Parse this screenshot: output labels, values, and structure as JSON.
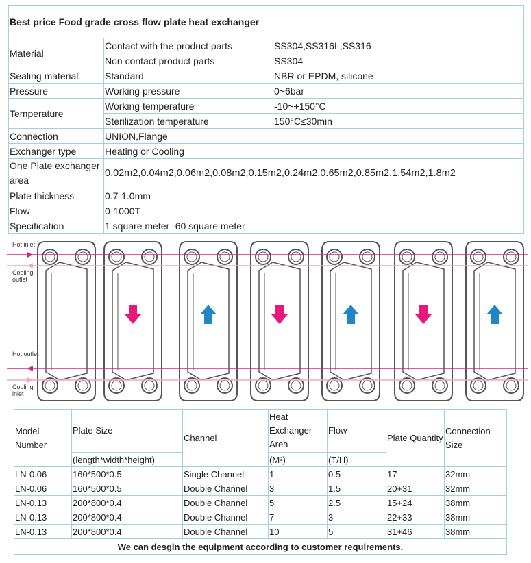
{
  "spec_table": {
    "title": "Best price Food grade cross flow plate heat exchanger",
    "rows": [
      {
        "label": "Material",
        "items": [
          [
            "Contact with the product parts",
            "SS304,SS316L,SS316"
          ],
          [
            "Non contact product parts",
            "SS304"
          ]
        ]
      },
      {
        "label": "Sealing material",
        "items": [
          [
            "Standard",
            "NBR or EPDM, silicone"
          ]
        ]
      },
      {
        "label": "Pressure",
        "items": [
          [
            "Working pressure",
            "0~6bar"
          ]
        ]
      },
      {
        "label": "Temperature",
        "items": [
          [
            "Working temperature",
            "-10~+150°C"
          ],
          [
            "Sterilization temperature",
            "150°C≤30min"
          ]
        ]
      },
      {
        "label": "Connection",
        "value": "UNION,Flange"
      },
      {
        "label": "Exchanger type",
        "value": "Heating or Cooling"
      },
      {
        "label": "One Plate exchanger area",
        "value": "0.02m2,0.04m2,0.06m2,0.08m2,0.15m2,0.24m2,0.65m2,0.85m2,1.54m2,1.8m2"
      },
      {
        "label": "Plate thickness",
        "value": "0.7-1.0mm"
      },
      {
        "label": "Flow",
        "value": "0-1000T"
      },
      {
        "label": "Specification",
        "value": "1 square meter -60 square meter"
      }
    ]
  },
  "diagram": {
    "hot_inlet": "Hot inlet",
    "cooling_outlet": "Cooling outlet",
    "hot_outlet": "Hot outlet",
    "cooling_inlet": "Cooling inlet"
  },
  "model_table": {
    "headers": [
      "Model Number",
      "Plate Size",
      "Channel",
      "Heat Exchanger Area",
      "Flow",
      "Plate Quantity",
      "Connection Size"
    ],
    "units": {
      "1": "(length*width*height)",
      "3": "(M²)",
      "4": "(T/H)"
    },
    "rows": [
      [
        "LN-0.06",
        "160*500*0.5",
        "Single Channel",
        "1",
        "0.5",
        "17",
        "32mm"
      ],
      [
        "LN-0.06",
        "160*500*0.5",
        "Double Channel",
        "3",
        "1.5",
        "20+31",
        "32mm"
      ],
      [
        "LN-0.13",
        "200*800*0.4",
        "Double Channel",
        "5",
        "2.5",
        "15+24",
        "38mm"
      ],
      [
        "LN-0.13",
        "200*800*0.4",
        "Double Channel",
        "7",
        "3",
        "22+33",
        "38mm"
      ],
      [
        "LN-0.13",
        "200*800*0.4",
        "Double Channel",
        "10",
        "5",
        "31+46",
        "38mm"
      ]
    ],
    "footer": "We can desgin the equipment according to customer requirements."
  }
}
